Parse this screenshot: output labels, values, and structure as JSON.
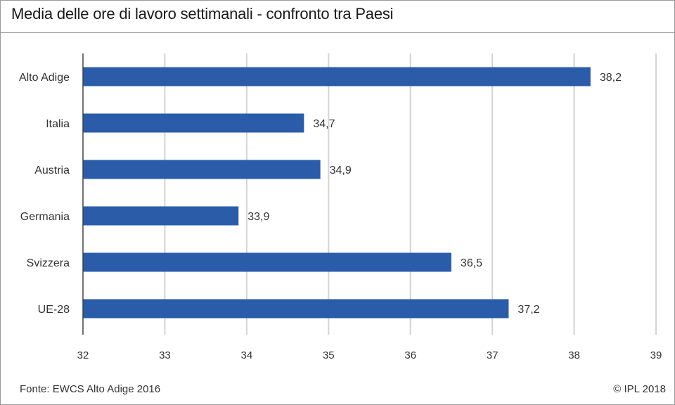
{
  "title": "Media delle ore di lavoro settimanali - confronto tra Paesi",
  "source": "Fonte: EWCS Alto Adige 2016",
  "copyright": "© IPL 2018",
  "chart_data": {
    "type": "bar",
    "orientation": "horizontal",
    "categories": [
      "Alto Adige",
      "Italia",
      "Austria",
      "Germania",
      "Svizzera",
      "UE-28"
    ],
    "values": [
      38.2,
      34.7,
      34.9,
      33.9,
      36.5,
      37.2
    ],
    "value_labels": [
      "38,2",
      "34,7",
      "34,9",
      "33,9",
      "36,5",
      "37,2"
    ],
    "xlim": [
      32,
      39
    ],
    "xticks": [
      32,
      33,
      34,
      35,
      36,
      37,
      38,
      39
    ],
    "bar_color": "#2a5caa",
    "grid": true
  }
}
